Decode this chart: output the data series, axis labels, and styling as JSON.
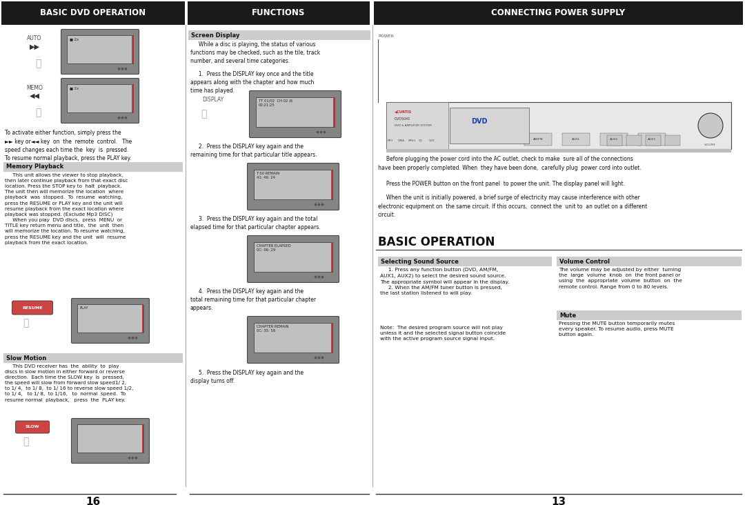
{
  "bg_color": "#ffffff",
  "header_bg": "#1a1a1a",
  "header_fg": "#ffffff",
  "subheader_bg": "#cccccc",
  "tv_body_color": "#888888",
  "tv_screen_color": "#aaaaaa",
  "tv_edge_color": "#555555",
  "col_divider_color": "#999999",
  "footer_line_color": "#333333",
  "text_color": "#111111",
  "label_color": "#555555",
  "button_color": "#cc3333",
  "page_number_left": "16",
  "page_number_right": "13",
  "col1_header": "BASIC DVD OPERATION",
  "col2_header": "FUNCTIONS",
  "col3_header": "CONNECTING POWER SUPPLY",
  "col1": {
    "auto_label": "AUTO",
    "memo_label": "MEMO",
    "intro": "To activate either function, simply press the\n►► key or◄◄ key  on  the  remote  control.   The\nspeed changes each time the  key  is  pressed.\nTo resume normal playback, press the PLAY key.",
    "mem_header": "Memory Playback",
    "mem_body": "     This unit allows the viewer to stop playback,\nthen later continue playback from that exact disc\nlocation. Press the STOP key to  halt  playback.\nThe unit then will memorize the location  where\nplayback  was  stopped.  To  resume  watching,\npress the RESUME or PLAY key and the unit will\nresume playback from the exact location where\nplayback was stopped. (Exclude Mp3 DISC)\n     When you play  DVD discs,  press  MENU  or\nTITLE key return menu and title,  the  unit  then\nwill memorize the location. To resume watching,\npress the RESUME key and the unit  will  resume\nplayback from the exact location.",
    "resume_label": "RESUME",
    "slow_header": "Slow Motion",
    "slow_body": "     This DVD receiver has  the  ability  to  play\ndiscs in slow motion in either forward or reverse\ndirection.  Each time the SLOW key  is  pressed,\nthe speed will slow from forward slow speed1/ 2,\nto 1/ 4,  to 1/ 8,  to 1/ 16 to reverse slow speed 1/2,\nto 1/ 4,   to 1/ 8,  to 1/16,   to  normal  speed.  To\nresume normal  playback,   press  the  PLAY key.",
    "slow_label": "SLOW"
  },
  "col2": {
    "screen_header": "Screen Display",
    "screen_body": "     While a disc is playing, the status of various\nfunctions may be checked, such as the tile, track\nnumber, and several time categories.",
    "step1": "     1.  Press the DISPLAY key once and the title\nappears along with the chapter and how much\ntime has played.",
    "display_label": "DISPLAY",
    "step2": "     2.  Press the DISPLAY key again and the\nremaining time for that particular title appears.",
    "tv2_text": "T:50 REMAIN\n41: 46: 24",
    "step3": "     3.  Press the DISPLAY key again and the total\nelapsed time for that particular chapter appears.",
    "tv3_text": "CHAPTER ELAPSED\n0C: 06: 29",
    "step4": "     4.  Press the DISPLAY key again and the\ntotal remaining time for that particular chapter\nappears.",
    "tv4_text": "CHAPTER REMAIN\n0C: 35: 58",
    "step5": "     5.  Press the DISPLAY key again and the\ndisplay turns off."
  },
  "col3": {
    "power_label": "POWER",
    "para1": "     Before plugging the power cord into the AC outlet, check to make  sure all of the connections\nhave been properly completed. When  they have been done,  carefully plug  power cord into outlet.",
    "para2": "     Press the POWER button on the front panel  to power the unit. The display panel will light.",
    "para3": "     When the unit is initially powered, a brief surge of electricity may cause interference with other\nelectronic equipment on  the same circuit. If this occurs,  connect the  unit to  an outlet on a different\ncircuit.",
    "basic_op": "BASIC OPERATION",
    "sel_header": "Selecting Sound Source",
    "sel_body": "     1. Press any function button (DVD, AM/FM,\nAUX1, AUX2) to select the desired sound source.\nThe appropriate symbol will appear in the display.\n     2. When the AM/FM tuner button is pressed,\nthe last station listened to will play.",
    "note_text": "Note:  The desired program source will not play\nunless it and the selected signal button coincide\nwith the active program source signal input.",
    "vol_header": "Volume Control",
    "vol_body": "The volume may be adjusted by either  turning\nthe  large  volume  knob  on  the front panel or\nusing  the  appropriate  volume  button  on  the\nremote control. Range from 0 to 80 levels.",
    "mute_header": "Mute",
    "mute_body": "Pressing the MUTE button temporarily mutes\nevery speaker. To resume audio, press MUTE\nbutton again."
  }
}
